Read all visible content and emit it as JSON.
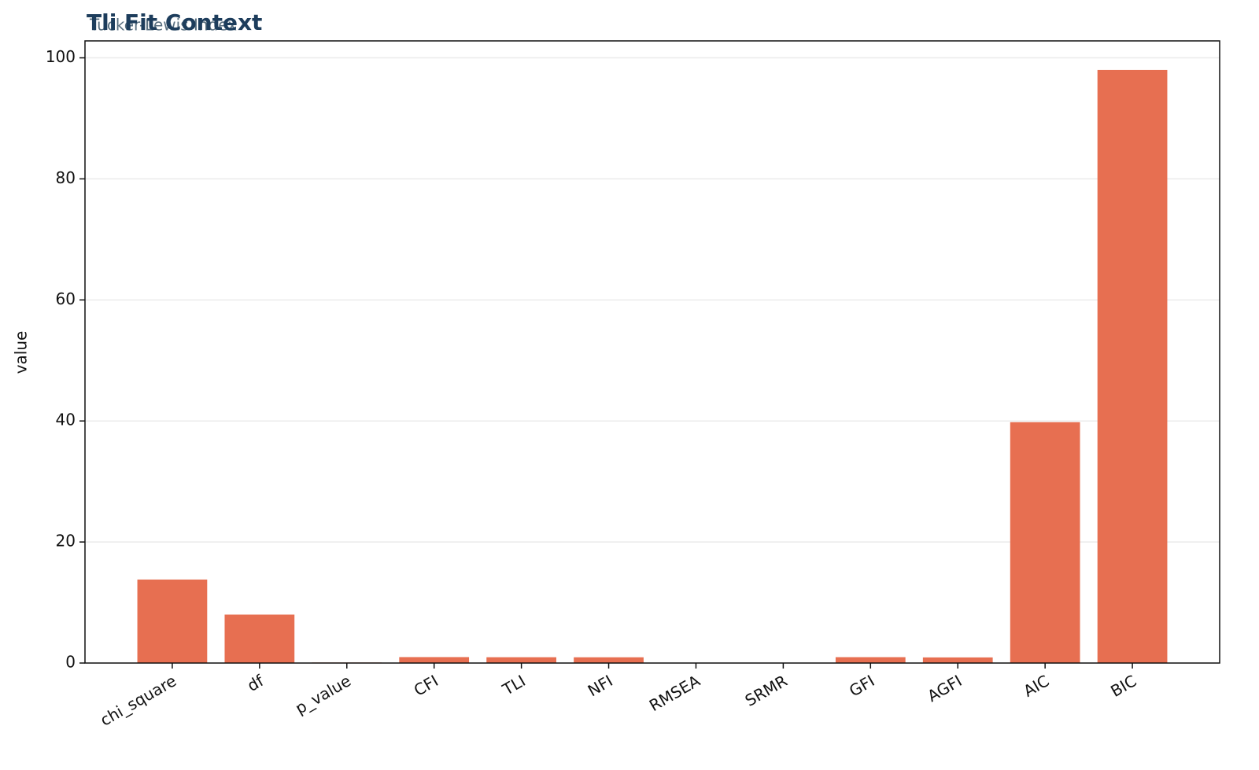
{
  "chart_data": {
    "type": "bar",
    "title": "Tli Fit Context",
    "subtitle": "Tucker-Lewis Index",
    "ylabel": "value",
    "categories": [
      "chi_square",
      "df",
      "p_value",
      "CFI",
      "TLI",
      "NFI",
      "RMSEA",
      "SRMR",
      "GFI",
      "AGFI",
      "AIC",
      "BIC"
    ],
    "values": [
      13.8,
      8,
      0.09,
      0.98,
      0.96,
      0.95,
      0.04,
      0.03,
      0.97,
      0.93,
      39.8,
      98
    ],
    "color": "#e76f51",
    "ylim": [
      0,
      102.8
    ],
    "yticks": [
      0,
      20,
      40,
      60,
      80,
      100
    ],
    "grid": true
  }
}
